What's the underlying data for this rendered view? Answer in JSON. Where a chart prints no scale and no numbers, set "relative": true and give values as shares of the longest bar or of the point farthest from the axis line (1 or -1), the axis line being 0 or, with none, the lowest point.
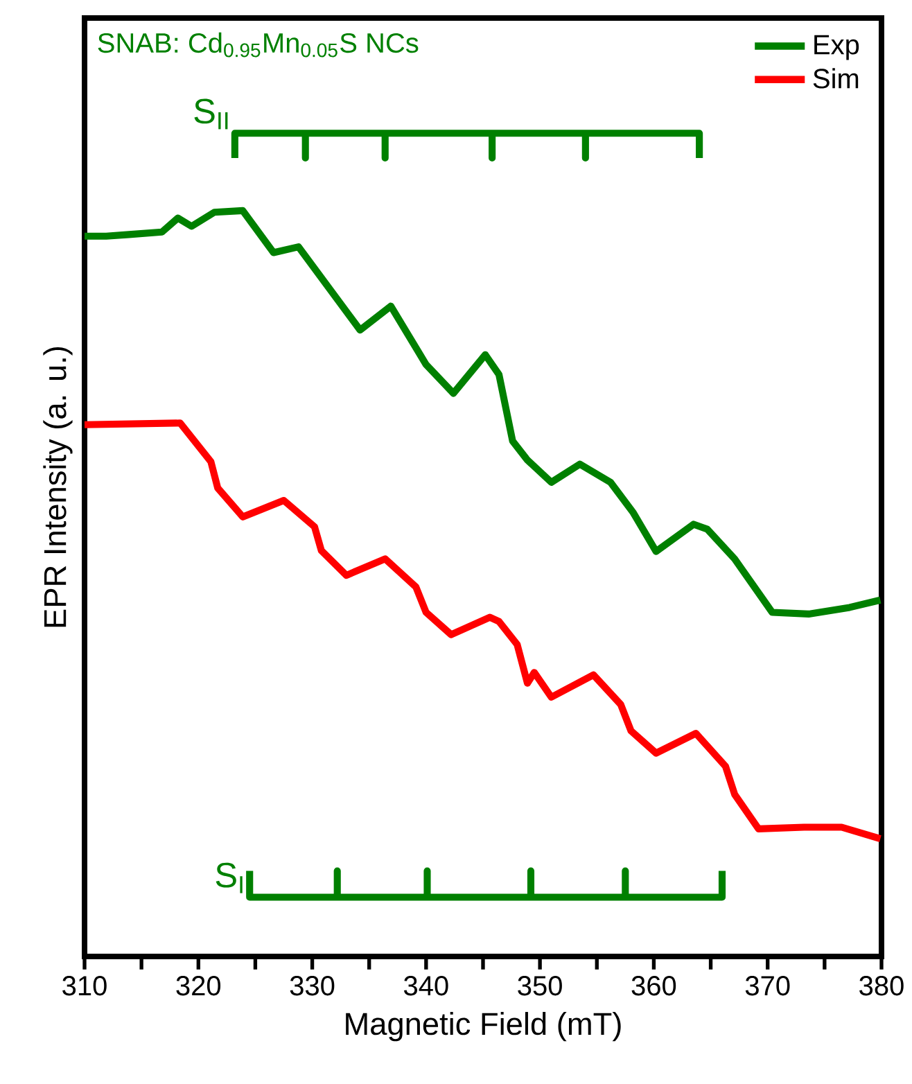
{
  "chart_data": {
    "type": "line",
    "title": "SNAB: Cd$_{0.95}$Mn$_{0.05}$S NCs",
    "xlabel": "Magnetic Field (mT)",
    "ylabel": "EPR Intensity (a. u.)",
    "relative": true,
    "legend": "top right",
    "xlim": [
      310,
      380
    ],
    "xticks": [
      310,
      {
        "value": 315,
        "label": null
      },
      320,
      {
        "value": 325,
        "label": null
      },
      330,
      {
        "value": 335,
        "label": null
      },
      340,
      {
        "value": 345,
        "label": null
      },
      350,
      {
        "value": 355,
        "label": null
      },
      360,
      {
        "value": 365,
        "label": null
      },
      370,
      {
        "value": 375,
        "label": null
      },
      380
    ],
    "series": [
      {
        "name": "Exp",
        "color": "#008000",
        "x": [
          310.0,
          311.9,
          313.9,
          316.8,
          318.2,
          319.4,
          321.4,
          323.9,
          326.6,
          328.8,
          334.2,
          336.9,
          340.0,
          342.4,
          345.2,
          346.4,
          347.6,
          348.9,
          351.0,
          353.5,
          356.2,
          358.2,
          360.2,
          363.5,
          364.7,
          367.1,
          370.4,
          373.6,
          377.2,
          379.9
        ],
        "values": [
          0.875,
          0.875,
          0.877,
          0.88,
          0.897,
          0.887,
          0.904,
          0.906,
          0.855,
          0.862,
          0.761,
          0.79,
          0.719,
          0.684,
          0.731,
          0.707,
          0.626,
          0.603,
          0.576,
          0.598,
          0.576,
          0.539,
          0.492,
          0.525,
          0.519,
          0.483,
          0.418,
          0.416,
          0.424,
          0.433
        ]
      },
      {
        "name": "Sim",
        "color": "#ff0000",
        "x": [
          310.0,
          318.4,
          321.1,
          321.7,
          323.9,
          327.5,
          330.2,
          330.8,
          333.0,
          336.4,
          339.1,
          340.0,
          342.2,
          345.6,
          346.4,
          348.0,
          348.9,
          349.5,
          351.0,
          354.7,
          357.1,
          358.0,
          360.2,
          363.7,
          366.3,
          367.1,
          369.2,
          373.2,
          376.5,
          379.9
        ],
        "values": [
          0.646,
          0.648,
          0.601,
          0.569,
          0.534,
          0.554,
          0.522,
          0.493,
          0.463,
          0.483,
          0.449,
          0.418,
          0.391,
          0.412,
          0.407,
          0.379,
          0.332,
          0.345,
          0.315,
          0.342,
          0.306,
          0.274,
          0.247,
          0.271,
          0.231,
          0.197,
          0.155,
          0.157,
          0.157,
          0.143
        ]
      },
      {
        "color": "#008000",
        "x": [
          323.2,
          323.2,
          329.4,
          329.4,
          329.4,
          336.4,
          336.4,
          336.4,
          345.8,
          345.8,
          345.8,
          354.0,
          354.0,
          354.0,
          364.0,
          364.0
        ],
        "values": [
          0.97,
          1.0,
          1.0,
          0.97,
          1.0,
          1.0,
          0.97,
          1.0,
          1.0,
          0.97,
          1.0,
          1.0,
          0.97,
          1.0,
          1.0,
          0.97
        ]
      },
      {
        "color": "#008000",
        "x": [
          324.5,
          324.5,
          332.2,
          332.2,
          332.2,
          340.1,
          340.1,
          340.1,
          349.2,
          349.2,
          349.2,
          357.5,
          357.5,
          357.5,
          366.0,
          366.0
        ],
        "values": [
          0.104,
          0.072,
          0.072,
          0.104,
          0.072,
          0.072,
          0.104,
          0.072,
          0.072,
          0.104,
          0.072,
          0.072,
          0.104,
          0.072,
          0.072,
          0.104
        ]
      }
    ],
    "annotations": [
      {
        "text": "S$_{II}$",
        "x": 323.2,
        "y": 1.0
      },
      {
        "text": "S$_{I}$",
        "x": 324.5,
        "y": 0.072
      }
    ]
  }
}
